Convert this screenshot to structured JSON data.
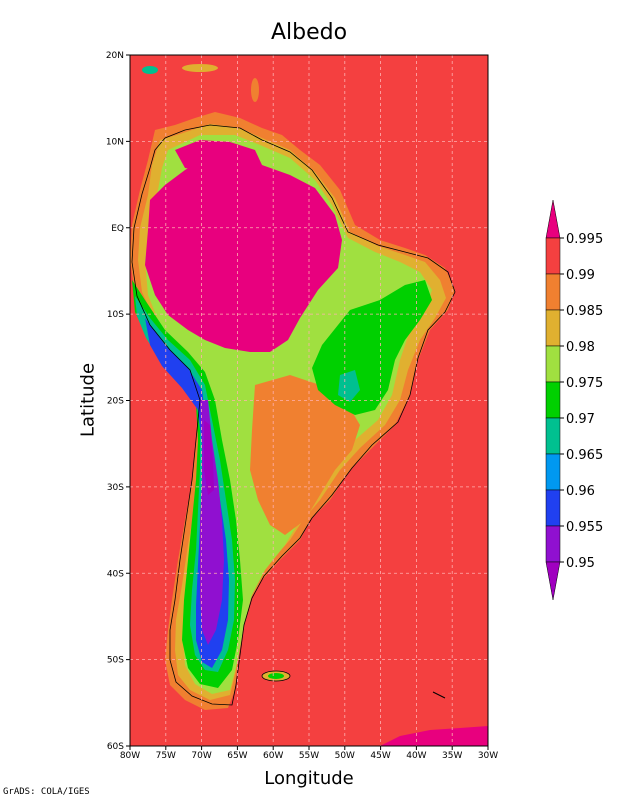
{
  "title": "Albedo",
  "xlabel": "Longitude",
  "ylabel": "Latitude",
  "credit": "GrADS: COLA/IGES",
  "x_ticks": [
    "80W",
    "75W",
    "70W",
    "65W",
    "60W",
    "55W",
    "50W",
    "45W",
    "40W",
    "35W",
    "30W"
  ],
  "y_ticks": [
    "20N",
    "10N",
    "EQ",
    "10S",
    "20S",
    "30S",
    "40S",
    "50S",
    "60S"
  ],
  "colorbar": {
    "levels": [
      "0.995",
      "0.99",
      "0.985",
      "0.98",
      "0.975",
      "0.97",
      "0.965",
      "0.96",
      "0.955",
      "0.95"
    ],
    "colors": [
      "#e8007e",
      "#f44040",
      "#f08030",
      "#e0b030",
      "#a0e040",
      "#00d000",
      "#00c090",
      "#0098f0",
      "#2040f0",
      "#9010d0",
      "#a000c0"
    ]
  },
  "map": {
    "region": "South America",
    "lon_range": [
      -80,
      -30
    ],
    "lat_range": [
      -60,
      20
    ],
    "background_value_color": "#f44040",
    "grid": true
  }
}
